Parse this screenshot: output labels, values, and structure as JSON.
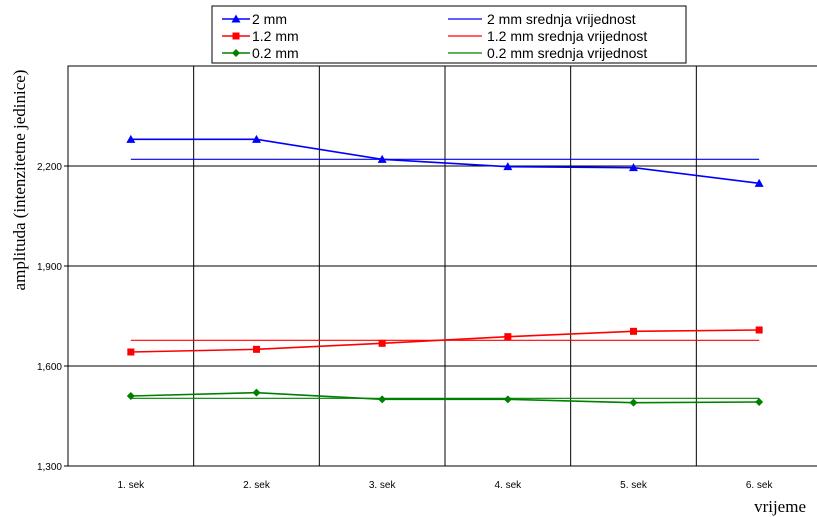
{
  "chart_data": {
    "type": "line",
    "title": "",
    "xlabel": "vrijeme",
    "ylabel": "amplituda (intenzitetne jedinice)",
    "categories": [
      "1. sek",
      "2. sek",
      "3. sek",
      "4. sek",
      "5. sek",
      "6. sek"
    ],
    "ylim": [
      1300,
      2500
    ],
    "yticks": [
      1300,
      1600,
      1900,
      2200
    ],
    "ytick_labels": [
      "1,300",
      "1,600",
      "1,900",
      "2,200"
    ],
    "grid": true,
    "legend_position": "top",
    "series": [
      {
        "name": "2 mm",
        "kind": "markers",
        "marker": "triangle",
        "color": "#0000ff",
        "values": [
          2280,
          2280,
          2220,
          2198,
          2195,
          2148
        ]
      },
      {
        "name": "1.2 mm",
        "kind": "markers",
        "marker": "square",
        "color": "#ff0000",
        "values": [
          1642,
          1650,
          1668,
          1688,
          1704,
          1708
        ]
      },
      {
        "name": "0.2 mm",
        "kind": "markers",
        "marker": "diamond",
        "color": "#008000",
        "values": [
          1510,
          1520,
          1500,
          1500,
          1490,
          1492
        ]
      },
      {
        "name": "2 mm srednja vrijednost",
        "kind": "flat",
        "color": "#0000ff",
        "values": [
          2220,
          2220,
          2220,
          2220,
          2220,
          2220
        ]
      },
      {
        "name": "1.2 mm srednja vrijednost",
        "kind": "flat",
        "color": "#ff0000",
        "values": [
          1677,
          1677,
          1677,
          1677,
          1677,
          1677
        ]
      },
      {
        "name": "0.2 mm srednja vrijednost",
        "kind": "flat",
        "color": "#008000",
        "values": [
          1503,
          1503,
          1503,
          1503,
          1503,
          1503
        ]
      }
    ]
  }
}
